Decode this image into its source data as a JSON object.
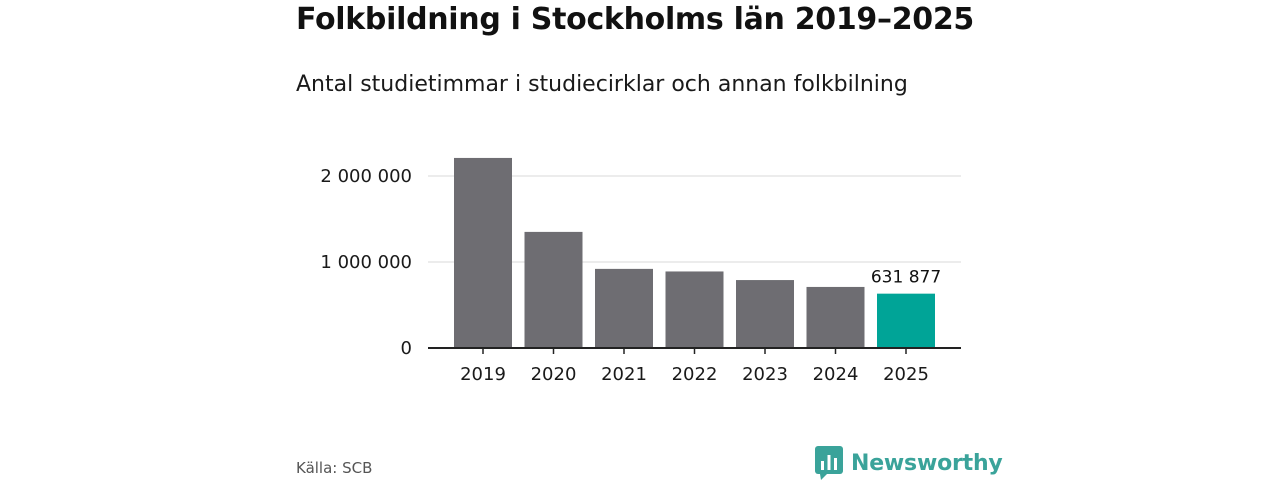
{
  "header": {
    "title": "Folkbildning i Stockholms län 2019–2025",
    "subtitle": "Antal studietimmar i studiecirklar och annan folkbilning"
  },
  "footer": {
    "source": "Källa: SCB",
    "brand": "Newsworthy",
    "brand_icon": "bar-chart-bubble-icon"
  },
  "colors": {
    "bar": "#6e6d72",
    "highlight": "#00a497",
    "grid": "#d9d9d9",
    "axis": "#222222",
    "brand": "#3aa39a"
  },
  "chart_data": {
    "type": "bar",
    "title": "Folkbildning i Stockholms län 2019–2025",
    "subtitle": "Antal studietimmar i studiecirklar och annan folkbilning",
    "xlabel": "",
    "ylabel": "",
    "categories": [
      "2019",
      "2020",
      "2021",
      "2022",
      "2023",
      "2024",
      "2025"
    ],
    "values": [
      2210000,
      1350000,
      920000,
      890000,
      790000,
      710000,
      631877
    ],
    "highlight_index": 6,
    "data_labels": [
      {
        "category": "2025",
        "text": "631 877"
      }
    ],
    "ylim": [
      0,
      2000000
    ],
    "yticks": [
      0,
      1000000,
      2000000
    ],
    "ytick_labels": [
      "0",
      "1 000 000",
      "2 000 000"
    ],
    "grid": true
  }
}
